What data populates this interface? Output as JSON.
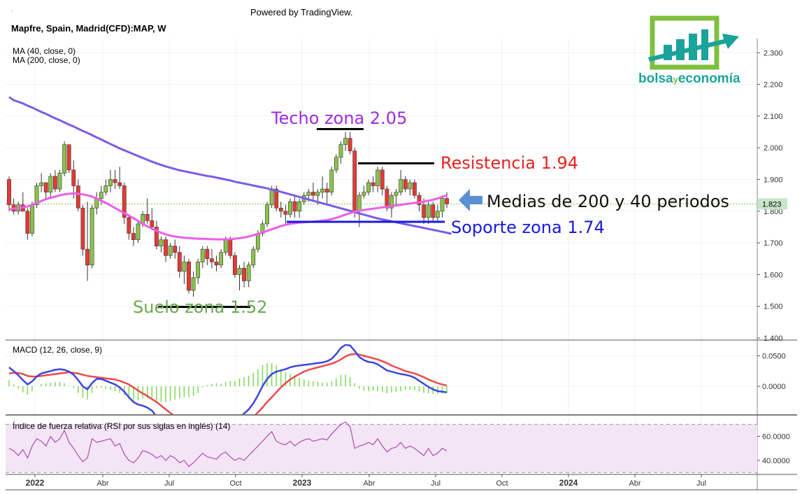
{
  "header": {
    "dot": ".",
    "powered_by": "Powered by TradingView.",
    "symbol": "Mapfre, Spain, Madrid(CFD):MAP, W",
    "ma40_label": "MA (40, close, 0)",
    "ma200_label": "MA (200, close, 0)"
  },
  "logo": {
    "text_bolsa": "bolsa",
    "text_y": "y",
    "text_economia": "economía",
    "green": "#7fbf3f",
    "teal": "#1aa39a"
  },
  "colors": {
    "up_candle": "#8bc34a",
    "down_candle": "#e53935",
    "ma40": "#ee5ee8",
    "ma200": "#7b5ce8",
    "macd_line": "#3b46e0",
    "signal_line": "#ee4a4a",
    "histogram": "#7ed957",
    "rsi_line": "#b24bb0",
    "rsi_band": "#f3e5f5",
    "price_tag": "#c8e6c9",
    "support": "#1a1adf",
    "resistance": "#e8211f",
    "ceiling_label": "#a02ae0",
    "floor_label": "#6aa84f",
    "arrow": "#5b8fd6"
  },
  "chart_data": [
    {
      "type": "candlestick",
      "x_unit": "week",
      "x_tick_labels": [
        "2022",
        "Abr",
        "Jul",
        "Oct",
        "2023",
        "Abr",
        "Jul",
        "Oct",
        "2024",
        "Abr",
        "Jul"
      ],
      "ylim": [
        1.39,
        2.33
      ],
      "y_ticks": [
        1.4,
        1.5,
        1.6,
        1.7,
        1.8,
        1.9,
        2.0,
        2.1,
        2.2,
        2.3
      ],
      "y_tick_labels": [
        "1.400",
        "1.500",
        "1.600",
        "1.700",
        "1.800",
        "1.900",
        "2.000",
        "2.100",
        "2.200",
        "2.300"
      ],
      "last_price": 1.823,
      "last_price_label": "1.823",
      "ohlc": [
        [
          1.9,
          1.91,
          1.8,
          1.82
        ],
        [
          1.82,
          1.84,
          1.79,
          1.8
        ],
        [
          1.8,
          1.83,
          1.79,
          1.82
        ],
        [
          1.82,
          1.86,
          1.8,
          1.8
        ],
        [
          1.8,
          1.81,
          1.71,
          1.73
        ],
        [
          1.73,
          1.83,
          1.72,
          1.82
        ],
        [
          1.82,
          1.89,
          1.81,
          1.88
        ],
        [
          1.88,
          1.92,
          1.86,
          1.89
        ],
        [
          1.89,
          1.89,
          1.84,
          1.86
        ],
        [
          1.86,
          1.92,
          1.84,
          1.91
        ],
        [
          1.91,
          1.93,
          1.86,
          1.87
        ],
        [
          1.87,
          1.93,
          1.86,
          1.92
        ],
        [
          1.92,
          2.02,
          1.91,
          2.01
        ],
        [
          2.01,
          2.01,
          1.92,
          1.93
        ],
        [
          1.93,
          1.96,
          1.84,
          1.88
        ],
        [
          1.88,
          1.9,
          1.8,
          1.81
        ],
        [
          1.81,
          1.82,
          1.66,
          1.68
        ],
        [
          1.68,
          1.83,
          1.58,
          1.63
        ],
        [
          1.63,
          1.82,
          1.62,
          1.81
        ],
        [
          1.81,
          1.86,
          1.79,
          1.84
        ],
        [
          1.84,
          1.88,
          1.82,
          1.86
        ],
        [
          1.86,
          1.9,
          1.85,
          1.88
        ],
        [
          1.88,
          1.93,
          1.86,
          1.9
        ],
        [
          1.9,
          1.93,
          1.87,
          1.89
        ],
        [
          1.89,
          1.94,
          1.87,
          1.88
        ],
        [
          1.88,
          1.89,
          1.76,
          1.78
        ],
        [
          1.78,
          1.79,
          1.71,
          1.73
        ],
        [
          1.73,
          1.75,
          1.69,
          1.71
        ],
        [
          1.71,
          1.77,
          1.7,
          1.76
        ],
        [
          1.76,
          1.8,
          1.75,
          1.79
        ],
        [
          1.79,
          1.84,
          1.76,
          1.77
        ],
        [
          1.77,
          1.81,
          1.74,
          1.75
        ],
        [
          1.75,
          1.77,
          1.68,
          1.69
        ],
        [
          1.69,
          1.72,
          1.67,
          1.71
        ],
        [
          1.71,
          1.72,
          1.64,
          1.66
        ],
        [
          1.66,
          1.7,
          1.65,
          1.69
        ],
        [
          1.69,
          1.71,
          1.65,
          1.67
        ],
        [
          1.67,
          1.69,
          1.59,
          1.61
        ],
        [
          1.61,
          1.66,
          1.57,
          1.64
        ],
        [
          1.64,
          1.65,
          1.54,
          1.55
        ],
        [
          1.55,
          1.61,
          1.53,
          1.59
        ],
        [
          1.59,
          1.65,
          1.57,
          1.64
        ],
        [
          1.64,
          1.69,
          1.62,
          1.68
        ],
        [
          1.68,
          1.69,
          1.63,
          1.65
        ],
        [
          1.65,
          1.68,
          1.62,
          1.64
        ],
        [
          1.64,
          1.66,
          1.61,
          1.63
        ],
        [
          1.63,
          1.68,
          1.62,
          1.67
        ],
        [
          1.67,
          1.72,
          1.66,
          1.71
        ],
        [
          1.71,
          1.72,
          1.65,
          1.66
        ],
        [
          1.66,
          1.67,
          1.59,
          1.6
        ],
        [
          1.6,
          1.63,
          1.55,
          1.62
        ],
        [
          1.62,
          1.64,
          1.56,
          1.58
        ],
        [
          1.58,
          1.64,
          1.56,
          1.63
        ],
        [
          1.63,
          1.69,
          1.62,
          1.68
        ],
        [
          1.68,
          1.74,
          1.67,
          1.73
        ],
        [
          1.73,
          1.77,
          1.72,
          1.76
        ],
        [
          1.76,
          1.83,
          1.75,
          1.82
        ],
        [
          1.82,
          1.88,
          1.81,
          1.87
        ],
        [
          1.87,
          1.88,
          1.8,
          1.81
        ],
        [
          1.81,
          1.83,
          1.78,
          1.8
        ],
        [
          1.8,
          1.82,
          1.76,
          1.79
        ],
        [
          1.79,
          1.84,
          1.78,
          1.83
        ],
        [
          1.83,
          1.85,
          1.78,
          1.8
        ],
        [
          1.8,
          1.84,
          1.78,
          1.83
        ],
        [
          1.83,
          1.86,
          1.82,
          1.85
        ],
        [
          1.85,
          1.87,
          1.83,
          1.86
        ],
        [
          1.86,
          1.89,
          1.83,
          1.85
        ],
        [
          1.85,
          1.87,
          1.82,
          1.86
        ],
        [
          1.86,
          1.91,
          1.84,
          1.87
        ],
        [
          1.87,
          1.89,
          1.82,
          1.86
        ],
        [
          1.86,
          1.94,
          1.85,
          1.93
        ],
        [
          1.93,
          1.98,
          1.92,
          1.97
        ],
        [
          1.97,
          2.02,
          1.95,
          2.01
        ],
        [
          2.01,
          2.05,
          1.99,
          2.03
        ],
        [
          2.03,
          2.05,
          1.98,
          1.99
        ],
        [
          1.99,
          2.0,
          1.78,
          1.8
        ],
        [
          1.8,
          1.86,
          1.75,
          1.85
        ],
        [
          1.85,
          1.88,
          1.84,
          1.86
        ],
        [
          1.86,
          1.9,
          1.85,
          1.89
        ],
        [
          1.89,
          1.91,
          1.86,
          1.88
        ],
        [
          1.88,
          1.94,
          1.86,
          1.93
        ],
        [
          1.93,
          1.94,
          1.85,
          1.87
        ],
        [
          1.87,
          1.88,
          1.8,
          1.81
        ],
        [
          1.81,
          1.86,
          1.78,
          1.85
        ],
        [
          1.85,
          1.87,
          1.82,
          1.86
        ],
        [
          1.86,
          1.93,
          1.85,
          1.9
        ],
        [
          1.9,
          1.91,
          1.86,
          1.87
        ],
        [
          1.87,
          1.9,
          1.85,
          1.89
        ],
        [
          1.89,
          1.9,
          1.84,
          1.85
        ],
        [
          1.85,
          1.86,
          1.8,
          1.82
        ],
        [
          1.82,
          1.84,
          1.76,
          1.78
        ],
        [
          1.78,
          1.83,
          1.76,
          1.82
        ],
        [
          1.82,
          1.83,
          1.77,
          1.78
        ],
        [
          1.78,
          1.82,
          1.77,
          1.8
        ],
        [
          1.8,
          1.85,
          1.78,
          1.84
        ],
        [
          1.84,
          1.86,
          1.81,
          1.823
        ]
      ],
      "ma40": [
        1.805,
        1.808,
        1.81,
        1.812,
        1.815,
        1.82,
        1.826,
        1.832,
        1.838,
        1.842,
        1.846,
        1.85,
        1.853,
        1.855,
        1.856,
        1.855,
        1.853,
        1.85,
        1.846,
        1.84,
        1.833,
        1.826,
        1.818,
        1.81,
        1.802,
        1.794,
        1.786,
        1.778,
        1.769,
        1.76,
        1.752,
        1.745,
        1.738,
        1.732,
        1.727,
        1.723,
        1.72,
        1.718,
        1.716,
        1.715,
        1.714,
        1.713,
        1.713,
        1.712,
        1.712,
        1.711,
        1.711,
        1.711,
        1.712,
        1.713,
        1.715,
        1.717,
        1.72,
        1.724,
        1.728,
        1.733,
        1.738,
        1.743,
        1.748,
        1.753,
        1.757,
        1.76,
        1.762,
        1.764,
        1.765,
        1.766,
        1.767,
        1.768,
        1.77,
        1.772,
        1.775,
        1.779,
        1.784,
        1.789,
        1.794,
        1.798,
        1.801,
        1.804,
        1.806,
        1.808,
        1.81,
        1.812,
        1.814,
        1.816,
        1.818,
        1.82,
        1.822,
        1.824,
        1.826,
        1.828,
        1.83,
        1.833,
        1.836,
        1.84,
        1.845,
        1.85
      ],
      "ma200": [
        2.16,
        2.15,
        2.145,
        2.14,
        2.133,
        2.127,
        2.12,
        2.113,
        2.107,
        2.1,
        2.093,
        2.087,
        2.08,
        2.073,
        2.067,
        2.06,
        2.053,
        2.047,
        2.04,
        2.033,
        2.026,
        2.019,
        2.012,
        2.005,
        1.998,
        1.992,
        1.986,
        1.98,
        1.974,
        1.968,
        1.962,
        1.956,
        1.951,
        1.946,
        1.941,
        1.937,
        1.933,
        1.929,
        1.926,
        1.923,
        1.92,
        1.917,
        1.914,
        1.911,
        1.909,
        1.906,
        1.903,
        1.9,
        1.897,
        1.893,
        1.89,
        1.887,
        1.884,
        1.881,
        1.878,
        1.875,
        1.872,
        1.868,
        1.865,
        1.861,
        1.857,
        1.853,
        1.849,
        1.845,
        1.841,
        1.837,
        1.833,
        1.829,
        1.825,
        1.821,
        1.817,
        1.813,
        1.809,
        1.805,
        1.801,
        1.797,
        1.793,
        1.789,
        1.785,
        1.781,
        1.777,
        1.774,
        1.771,
        1.768,
        1.765,
        1.762,
        1.759,
        1.756,
        1.753,
        1.75,
        1.747,
        1.744,
        1.741,
        1.738,
        1.735,
        1.732,
        1.729
      ],
      "annotations": {
        "ceiling": {
          "label": "Techo zona 2.05",
          "value": 2.05
        },
        "resistance": {
          "label": "Resistencia 1.94",
          "value": 1.94
        },
        "averages": {
          "label": "Medias de 200 y 40 periodos"
        },
        "support": {
          "label": "Soporte zona 1.74",
          "value": 1.74
        },
        "floor": {
          "label": "Suelo zona 1.52",
          "value": 1.52
        }
      }
    },
    {
      "type": "line",
      "title": "MACD (12, 26, close, 9)",
      "ylim": [
        -0.085,
        0.065
      ],
      "y_ticks": [
        0.0,
        0.05
      ],
      "y_tick_labels": [
        "0.0000",
        "0.0500"
      ],
      "macd": [
        0.031,
        0.025,
        0.018,
        0.01,
        0.003,
        0.008,
        0.016,
        0.021,
        0.023,
        0.025,
        0.027,
        0.028,
        0.027,
        0.024,
        0.019,
        0.01,
        0.0,
        -0.005,
        0.005,
        0.012,
        0.012,
        0.009,
        0.006,
        0.003,
        -0.002,
        -0.009,
        -0.018,
        -0.026,
        -0.03,
        -0.032,
        -0.035,
        -0.04,
        -0.05,
        -0.058,
        -0.064,
        -0.068,
        -0.071,
        -0.074,
        -0.077,
        -0.081,
        -0.083,
        -0.081,
        -0.074,
        -0.07,
        -0.068,
        -0.067,
        -0.067,
        -0.062,
        -0.058,
        -0.058,
        -0.05,
        -0.045,
        -0.038,
        -0.028,
        -0.015,
        0.0,
        0.012,
        0.02,
        0.024,
        0.026,
        0.028,
        0.031,
        0.033,
        0.034,
        0.035,
        0.036,
        0.037,
        0.038,
        0.039,
        0.041,
        0.045,
        0.053,
        0.063,
        0.068,
        0.067,
        0.058,
        0.048,
        0.043,
        0.04,
        0.039,
        0.036,
        0.031,
        0.026,
        0.024,
        0.022,
        0.02,
        0.019,
        0.017,
        0.014,
        0.009,
        0.004,
        -0.001,
        -0.005,
        -0.008,
        -0.009,
        -0.01
      ],
      "signal": [
        0.021,
        0.022,
        0.022,
        0.02,
        0.017,
        0.016,
        0.016,
        0.017,
        0.018,
        0.019,
        0.02,
        0.021,
        0.022,
        0.023,
        0.022,
        0.021,
        0.019,
        0.017,
        0.016,
        0.015,
        0.014,
        0.013,
        0.012,
        0.011,
        0.009,
        0.006,
        0.003,
        -0.002,
        -0.007,
        -0.012,
        -0.016,
        -0.021,
        -0.026,
        -0.032,
        -0.038,
        -0.044,
        -0.049,
        -0.054,
        -0.059,
        -0.063,
        -0.067,
        -0.07,
        -0.072,
        -0.072,
        -0.072,
        -0.072,
        -0.071,
        -0.069,
        -0.067,
        -0.066,
        -0.063,
        -0.06,
        -0.055,
        -0.05,
        -0.043,
        -0.035,
        -0.026,
        -0.018,
        -0.01,
        -0.002,
        0.005,
        0.011,
        0.016,
        0.02,
        0.024,
        0.027,
        0.029,
        0.031,
        0.033,
        0.035,
        0.037,
        0.04,
        0.044,
        0.049,
        0.052,
        0.053,
        0.052,
        0.05,
        0.048,
        0.046,
        0.044,
        0.041,
        0.038,
        0.034,
        0.031,
        0.028,
        0.025,
        0.023,
        0.021,
        0.018,
        0.015,
        0.011,
        0.008,
        0.005,
        0.003,
        0.001
      ],
      "histogram": [
        0.01,
        0.003,
        -0.004,
        -0.01,
        -0.014,
        -0.008,
        0.0,
        0.004,
        0.005,
        0.006,
        0.007,
        0.007,
        0.005,
        0.001,
        -0.003,
        -0.011,
        -0.019,
        -0.022,
        -0.011,
        -0.003,
        -0.002,
        -0.004,
        -0.006,
        -0.008,
        -0.011,
        -0.015,
        -0.021,
        -0.024,
        -0.023,
        -0.02,
        -0.019,
        -0.019,
        -0.024,
        -0.026,
        -0.026,
        -0.024,
        -0.022,
        -0.02,
        -0.018,
        -0.018,
        -0.016,
        -0.011,
        -0.002,
        0.002,
        0.004,
        0.005,
        0.004,
        0.007,
        0.009,
        0.008,
        0.013,
        0.015,
        0.017,
        0.022,
        0.028,
        0.035,
        0.038,
        0.038,
        0.034,
        0.028,
        0.023,
        0.02,
        0.017,
        0.014,
        0.011,
        0.009,
        0.008,
        0.007,
        0.006,
        0.006,
        0.008,
        0.013,
        0.019,
        0.019,
        0.015,
        0.005,
        -0.004,
        -0.007,
        -0.008,
        -0.007,
        -0.008,
        -0.01,
        -0.012,
        -0.01,
        -0.009,
        -0.008,
        -0.006,
        -0.006,
        -0.007,
        -0.009,
        -0.011,
        -0.012,
        -0.013,
        -0.013,
        -0.012,
        -0.011
      ]
    },
    {
      "type": "line",
      "title": "Índice de fuerza relativa (RSI por sus siglas en inglés) (14)",
      "ylim": [
        30,
        72
      ],
      "y_ticks": [
        40,
        60
      ],
      "y_tick_labels": [
        "40.0000",
        "60.0000"
      ],
      "band": [
        30,
        70
      ],
      "rsi": [
        50,
        48,
        44,
        49,
        42,
        52,
        58,
        56,
        52,
        60,
        55,
        58,
        65,
        55,
        50,
        44,
        39,
        42,
        58,
        55,
        56,
        57,
        58,
        52,
        54,
        45,
        40,
        38,
        42,
        48,
        47,
        45,
        42,
        44,
        40,
        44,
        42,
        38,
        40,
        35,
        38,
        42,
        46,
        43,
        42,
        41,
        45,
        47,
        43,
        40,
        42,
        40,
        44,
        48,
        52,
        56,
        60,
        64,
        56,
        54,
        53,
        56,
        52,
        55,
        57,
        58,
        56,
        57,
        58,
        57,
        62,
        66,
        70,
        72,
        68,
        50,
        52,
        53,
        55,
        53,
        58,
        52,
        47,
        50,
        51,
        55,
        50,
        52,
        50,
        47,
        44,
        50,
        44,
        46,
        50,
        48
      ]
    }
  ]
}
